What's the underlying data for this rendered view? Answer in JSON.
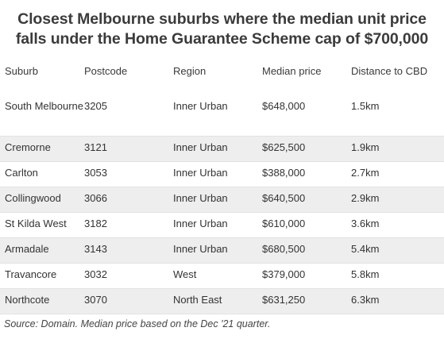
{
  "title": "Closest Melbourne suburbs where the median unit price falls under the Home Guarantee Scheme cap of $700,000",
  "source": "Source: Domain. Median price based on the Dec '21 quarter.",
  "chart_data": {
    "type": "table",
    "title": "Closest Melbourne suburbs where the median unit price falls under the Home Guarantee Scheme cap of $700,000",
    "columns": [
      "Suburb",
      "Postcode",
      "Region",
      "Median price",
      "Distance to CBD"
    ],
    "rows": [
      [
        "South Melbourne",
        "3205",
        "Inner Urban",
        "$648,000",
        "1.5km"
      ],
      [
        "Cremorne",
        "3121",
        "Inner Urban",
        "$625,500",
        "1.9km"
      ],
      [
        "Carlton",
        "3053",
        "Inner Urban",
        "$388,000",
        "2.7km"
      ],
      [
        "Collingwood",
        "3066",
        "Inner Urban",
        "$640,500",
        "2.9km"
      ],
      [
        "St Kilda West",
        "3182",
        "Inner Urban",
        "$610,000",
        "3.6km"
      ],
      [
        "Armadale",
        "3143",
        "Inner Urban",
        "$680,500",
        "5.4km"
      ],
      [
        "Travancore",
        "3032",
        "West",
        "$379,000",
        "5.8km"
      ],
      [
        "Northcote",
        "3070",
        "North East",
        "$631,250",
        "6.3km"
      ]
    ]
  }
}
